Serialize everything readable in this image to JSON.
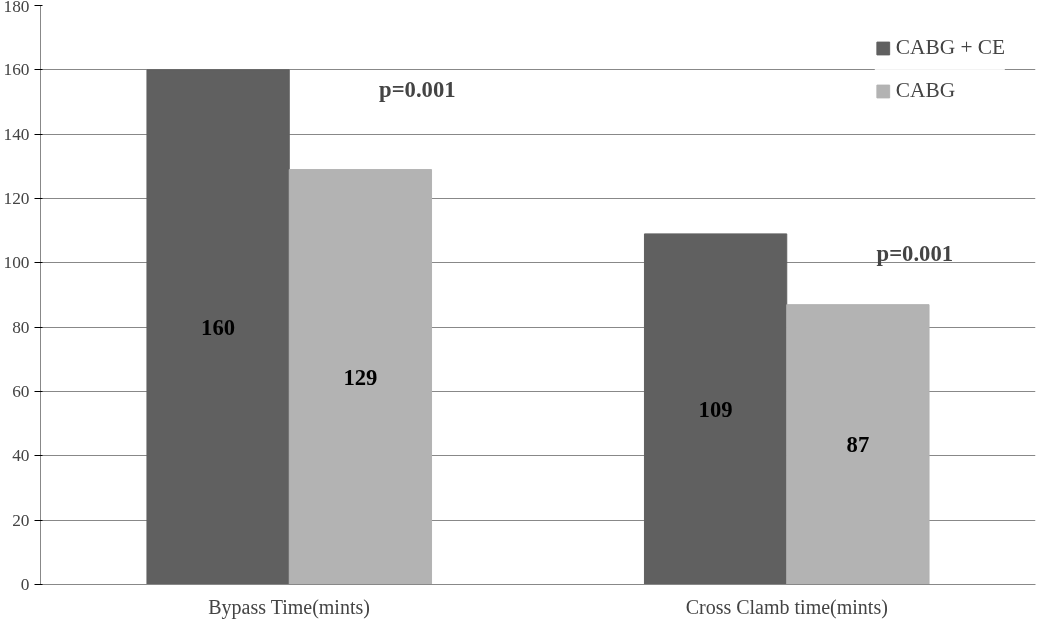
{
  "chart_data": {
    "type": "bar",
    "categories": [
      "Bypass Time(mints)",
      "Cross Clamb time(mints)"
    ],
    "series": [
      {
        "name": "CABG + CE",
        "color": "#606060",
        "values": [
          160,
          109
        ]
      },
      {
        "name": "CABG",
        "color": "#b3b3b3",
        "values": [
          129,
          87
        ]
      }
    ],
    "ylim": [
      0,
      180
    ],
    "yticks": [
      0,
      20,
      40,
      60,
      80,
      100,
      120,
      140,
      160,
      180
    ],
    "grid": "y",
    "legend": "top right",
    "data_labels": true,
    "annotations": [
      "p=0.001",
      "p=0.001"
    ]
  }
}
